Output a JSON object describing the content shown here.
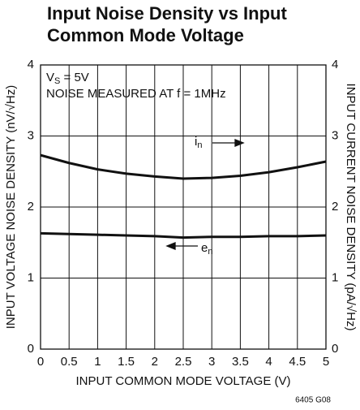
{
  "chart_data": {
    "type": "line",
    "title": [
      "Input Noise Density vs Input",
      "Common Mode Voltage"
    ],
    "xlabel": "INPUT COMMON MODE VOLTAGE (V)",
    "ylabel": "INPUT VOLTAGE NOISE DENSITY (nV/√Hz)",
    "y2label": "INPUT CURRENT NOISE DENSITY (pA/√Hz)",
    "annotations": [
      {
        "text": "V",
        "sub": "S",
        "rest": " = 5V"
      },
      {
        "text": "NOISE MEASURED AT f = 1MHz"
      }
    ],
    "figure_code": "6405 G08",
    "x": [
      0,
      0.5,
      1,
      1.5,
      2,
      2.5,
      3,
      3.5,
      4,
      4.5,
      5
    ],
    "series": [
      {
        "name": "i",
        "sub": "n",
        "color": "#111111",
        "axis": "y2",
        "values": [
          2.73,
          2.62,
          2.53,
          2.47,
          2.43,
          2.4,
          2.41,
          2.44,
          2.49,
          2.56,
          2.64
        ]
      },
      {
        "name": "e",
        "sub": "n",
        "color": "#111111",
        "values": [
          1.63,
          1.62,
          1.61,
          1.6,
          1.59,
          1.57,
          1.58,
          1.58,
          1.59,
          1.59,
          1.6
        ]
      }
    ],
    "xlim": [
      0,
      5
    ],
    "xticks": [
      0,
      0.5,
      1,
      1.5,
      2,
      2.5,
      3,
      3.5,
      4,
      4.5,
      5
    ],
    "ylim": [
      0,
      4
    ],
    "yticks": [
      0,
      1,
      2,
      3,
      4
    ],
    "y2lim": [
      0,
      4
    ],
    "y2ticks": [
      0,
      1,
      2,
      3,
      4
    ],
    "grid": true
  }
}
